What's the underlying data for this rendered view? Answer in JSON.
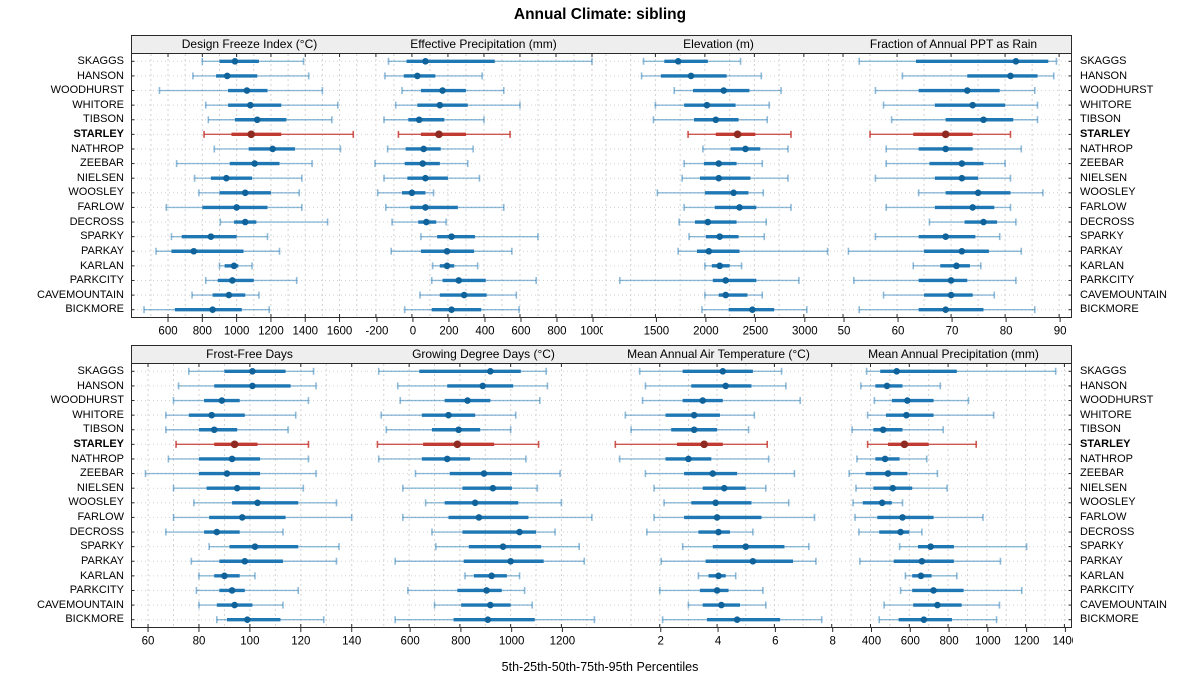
{
  "title": "Annual Climate: sibling",
  "caption": "5th-25th-50th-75th-95th Percentiles",
  "highlight_station": "STARLEY",
  "colors": {
    "normal_box": "#1f77b4",
    "normal_whisker": "rgba(31,119,180,0.5)",
    "normal_dot": "#0f639a",
    "highlight_box": "#c23b32",
    "highlight_whisker": "rgba(197,58,50,0.85)",
    "highlight_dot": "#8e2a22",
    "grid": "#d2d2d2",
    "border": "#2a2a2a",
    "header_bg": "#eeeeee"
  },
  "stations": [
    "SKAGGS",
    "HANSON",
    "WOODHURST",
    "WHITORE",
    "TIBSON",
    "STARLEY",
    "NATHROP",
    "ZEEBAR",
    "NIELSEN",
    "WOOSLEY",
    "FARLOW",
    "DECROSS",
    "SPARKY",
    "PARKAY",
    "KARLAN",
    "PARKCITY",
    "CAVEMOUNTAIN",
    "BICKMORE"
  ],
  "chart_data": {
    "type": "scatter",
    "variant": "percentile-range-dotplot-trellis",
    "percentiles": [
      5,
      25,
      50,
      75,
      95
    ],
    "legend_position": "none",
    "grid": true,
    "panels": [
      {
        "title": "Design Freeze Index (°C)",
        "xlim": [
          390,
          1760
        ],
        "ticks": [
          600,
          800,
          1000,
          1200,
          1400,
          1600
        ],
        "grid_step": 100,
        "values": [
          [
            800,
            900,
            990,
            1130,
            1390
          ],
          [
            745,
            880,
            945,
            1120,
            1420
          ],
          [
            550,
            950,
            1060,
            1180,
            1500
          ],
          [
            820,
            950,
            1080,
            1260,
            1590
          ],
          [
            835,
            990,
            1120,
            1290,
            1555
          ],
          [
            810,
            970,
            1085,
            1260,
            1680
          ],
          [
            870,
            1070,
            1210,
            1340,
            1605
          ],
          [
            650,
            960,
            1105,
            1250,
            1440
          ],
          [
            755,
            850,
            940,
            1090,
            1380
          ],
          [
            780,
            900,
            1050,
            1200,
            1365
          ],
          [
            590,
            800,
            1000,
            1180,
            1380
          ],
          [
            905,
            985,
            1050,
            1115,
            1530
          ],
          [
            620,
            680,
            850,
            1000,
            1180
          ],
          [
            530,
            620,
            750,
            1040,
            1250
          ],
          [
            900,
            930,
            985,
            1010,
            1090
          ],
          [
            820,
            890,
            975,
            1100,
            1350
          ],
          [
            740,
            860,
            955,
            1050,
            1130
          ],
          [
            460,
            640,
            860,
            1030,
            1190
          ]
        ]
      },
      {
        "title": "Effective Precipitation (mm)",
        "xlim": [
          -255,
          1050
        ],
        "ticks": [
          -200,
          0,
          200,
          400,
          600,
          800,
          1000
        ],
        "grid_step": 100,
        "values": [
          [
            -130,
            -30,
            75,
            460,
            1000
          ],
          [
            -150,
            -45,
            30,
            130,
            390
          ],
          [
            -55,
            50,
            170,
            300,
            510
          ],
          [
            -90,
            30,
            155,
            310,
            600
          ],
          [
            -155,
            -20,
            40,
            180,
            400
          ],
          [
            -75,
            50,
            150,
            300,
            545
          ],
          [
            -135,
            -35,
            65,
            160,
            340
          ],
          [
            -205,
            -40,
            60,
            155,
            310
          ],
          [
            -155,
            -25,
            75,
            200,
            375
          ],
          [
            -190,
            -55,
            0,
            75,
            120
          ],
          [
            -145,
            -10,
            75,
            255,
            510
          ],
          [
            -110,
            35,
            80,
            135,
            190
          ],
          [
            50,
            140,
            220,
            350,
            700
          ],
          [
            -115,
            50,
            195,
            345,
            555
          ],
          [
            115,
            155,
            195,
            235,
            365
          ],
          [
            110,
            170,
            260,
            410,
            690
          ],
          [
            45,
            155,
            290,
            415,
            580
          ],
          [
            -40,
            110,
            220,
            385,
            595
          ]
        ]
      },
      {
        "title": "Elevation (m)",
        "xlim": [
          950,
          3325
        ],
        "ticks": [
          1500,
          2000,
          2500,
          3000
        ],
        "grid_step": 250,
        "values": [
          [
            1380,
            1590,
            1730,
            2030,
            2360
          ],
          [
            1360,
            1555,
            1860,
            2220,
            2570
          ],
          [
            1690,
            1880,
            2190,
            2450,
            2770
          ],
          [
            1500,
            1790,
            2020,
            2310,
            2650
          ],
          [
            1480,
            1890,
            2110,
            2340,
            2630
          ],
          [
            1830,
            2110,
            2330,
            2510,
            2870
          ],
          [
            1980,
            2260,
            2410,
            2560,
            2840
          ],
          [
            1790,
            1990,
            2140,
            2320,
            2580
          ],
          [
            1770,
            1950,
            2140,
            2460,
            2840
          ],
          [
            1520,
            2000,
            2290,
            2440,
            2590
          ],
          [
            1790,
            2100,
            2350,
            2520,
            2870
          ],
          [
            1740,
            1900,
            2030,
            2320,
            2620
          ],
          [
            1840,
            2010,
            2150,
            2340,
            2600
          ],
          [
            1730,
            1920,
            2040,
            2350,
            3240
          ],
          [
            2000,
            2070,
            2150,
            2250,
            2370
          ],
          [
            1140,
            2080,
            2210,
            2520,
            2950
          ],
          [
            2000,
            2140,
            2210,
            2430,
            2580
          ],
          [
            1970,
            2240,
            2480,
            2700,
            3030
          ]
        ]
      },
      {
        "title": "Fraction of Annual PPT as Rain",
        "xlim": [
          48.7,
          92.2
        ],
        "ticks": [
          50,
          60,
          70,
          80,
          90
        ],
        "grid_step": 5,
        "values": [
          [
            53,
            63.5,
            82,
            88,
            89.5
          ],
          [
            61,
            73,
            81,
            86,
            89
          ],
          [
            56,
            64,
            73,
            79,
            85.5
          ],
          [
            57.5,
            67,
            74,
            80,
            86
          ],
          [
            59,
            69,
            76,
            81.5,
            86
          ],
          [
            55,
            63,
            69,
            74,
            81
          ],
          [
            58,
            64,
            69,
            74,
            83
          ],
          [
            58,
            66,
            72,
            76,
            80
          ],
          [
            56,
            67,
            72,
            75,
            81
          ],
          [
            64,
            69,
            75,
            81,
            87
          ],
          [
            58,
            67,
            74,
            78,
            81
          ],
          [
            66,
            72.5,
            76,
            78.5,
            82
          ],
          [
            56,
            64,
            69,
            74.5,
            79
          ],
          [
            51,
            65,
            72,
            77,
            83
          ],
          [
            63,
            68,
            71,
            73.5,
            75.5
          ],
          [
            52,
            64,
            70,
            73,
            82
          ],
          [
            57.5,
            65,
            70,
            74,
            78
          ],
          [
            53,
            64,
            69,
            76,
            85.5
          ]
        ]
      },
      {
        "title": "Frost-Free Days",
        "xlim": [
          53.7,
          146
        ],
        "ticks": [
          60,
          80,
          100,
          120,
          140
        ],
        "grid_step": 10,
        "values": [
          [
            76,
            90,
            101,
            114,
            125
          ],
          [
            72,
            86,
            101,
            116,
            126
          ],
          [
            70,
            82,
            89,
            96,
            123
          ],
          [
            67,
            76,
            85,
            98,
            118
          ],
          [
            67,
            80,
            86,
            95,
            115
          ],
          [
            71,
            86,
            94,
            103,
            123
          ],
          [
            68,
            80,
            93,
            104,
            123
          ],
          [
            59,
            80,
            91,
            104,
            126
          ],
          [
            70,
            83,
            95,
            104,
            121
          ],
          [
            78,
            93,
            103,
            119,
            134
          ],
          [
            70,
            84,
            97,
            114,
            140
          ],
          [
            67,
            82,
            87,
            96,
            113
          ],
          [
            84,
            92,
            102,
            119,
            135
          ],
          [
            77,
            88,
            98,
            113,
            134
          ],
          [
            80,
            86,
            90,
            96,
            102
          ],
          [
            79,
            88,
            93,
            98,
            119
          ],
          [
            80,
            87,
            94,
            101,
            113
          ],
          [
            87,
            91,
            99,
            112,
            129
          ]
        ]
      },
      {
        "title": "Growing Degree Days (°C)",
        "xlim": [
          430,
          1356
        ],
        "ticks": [
          600,
          800,
          1000,
          1200
        ],
        "grid_step": 100,
        "values": [
          [
            480,
            640,
            920,
            1040,
            1140
          ],
          [
            555,
            750,
            890,
            1010,
            1145
          ],
          [
            565,
            740,
            830,
            920,
            1115
          ],
          [
            490,
            650,
            755,
            860,
            1020
          ],
          [
            510,
            690,
            795,
            880,
            1000
          ],
          [
            475,
            655,
            790,
            935,
            1110
          ],
          [
            480,
            650,
            750,
            840,
            1060
          ],
          [
            625,
            760,
            895,
            1005,
            1195
          ],
          [
            575,
            810,
            930,
            1005,
            1105
          ],
          [
            665,
            740,
            860,
            1030,
            1200
          ],
          [
            575,
            755,
            875,
            1070,
            1320
          ],
          [
            690,
            810,
            1035,
            1100,
            1175
          ],
          [
            705,
            835,
            970,
            1120,
            1270
          ],
          [
            545,
            815,
            1000,
            1130,
            1290
          ],
          [
            820,
            855,
            925,
            985,
            1035
          ],
          [
            595,
            790,
            905,
            965,
            1055
          ],
          [
            700,
            805,
            920,
            1000,
            1085
          ],
          [
            545,
            775,
            910,
            1095,
            1330
          ]
        ]
      },
      {
        "title": "Mean Annual Air Temperature (°C)",
        "xlim": [
          -0.05,
          8.15
        ],
        "ticks": [
          2,
          4,
          6,
          8
        ],
        "grid_step": 1,
        "values": [
          [
            1.3,
            2.8,
            4.2,
            5.25,
            6.25
          ],
          [
            1.5,
            3.1,
            4.3,
            5.2,
            6.4
          ],
          [
            1.4,
            2.8,
            3.5,
            4.2,
            6.9
          ],
          [
            0.8,
            2.2,
            3.2,
            4.1,
            5.3
          ],
          [
            1.0,
            2.4,
            3.2,
            4.0,
            5.1
          ],
          [
            0.45,
            2.6,
            3.55,
            4.2,
            5.75
          ],
          [
            0.6,
            2.2,
            3.0,
            3.8,
            5.8
          ],
          [
            1.5,
            2.85,
            3.85,
            4.7,
            6.7
          ],
          [
            1.8,
            3.5,
            4.25,
            5.0,
            5.7
          ],
          [
            2.15,
            3.1,
            3.95,
            5.2,
            6.5
          ],
          [
            1.8,
            2.85,
            4.0,
            5.55,
            7.4
          ],
          [
            1.55,
            3.35,
            4.05,
            4.45,
            5.25
          ],
          [
            2.8,
            3.85,
            5.0,
            6.35,
            7.2
          ],
          [
            2.05,
            3.6,
            5.25,
            6.65,
            7.45
          ],
          [
            3.35,
            3.7,
            4.05,
            4.3,
            4.65
          ],
          [
            2.0,
            3.4,
            4.0,
            4.4,
            5.6
          ],
          [
            3.0,
            3.5,
            4.15,
            4.8,
            5.7
          ],
          [
            2.1,
            3.65,
            4.7,
            6.2,
            7.65
          ]
        ]
      },
      {
        "title": "Mean Annual Precipitation (mm)",
        "xlim": [
          222,
          1434
        ],
        "ticks": [
          400,
          600,
          800,
          1000,
          1200,
          1400
        ],
        "grid_step": 100,
        "values": [
          [
            380,
            450,
            535,
            845,
            1355
          ],
          [
            350,
            425,
            485,
            565,
            760
          ],
          [
            420,
            510,
            590,
            725,
            905
          ],
          [
            385,
            480,
            585,
            725,
            1035
          ],
          [
            305,
            415,
            465,
            565,
            775
          ],
          [
            385,
            490,
            575,
            700,
            945
          ],
          [
            330,
            425,
            475,
            550,
            690
          ],
          [
            290,
            375,
            490,
            590,
            745
          ],
          [
            325,
            415,
            515,
            615,
            795
          ],
          [
            310,
            360,
            460,
            510,
            565
          ],
          [
            320,
            435,
            565,
            725,
            980
          ],
          [
            340,
            445,
            555,
            600,
            665
          ],
          [
            550,
            645,
            710,
            830,
            1205
          ],
          [
            345,
            520,
            665,
            830,
            1070
          ],
          [
            580,
            615,
            660,
            715,
            845
          ],
          [
            555,
            615,
            725,
            880,
            1180
          ],
          [
            470,
            620,
            745,
            870,
            1065
          ],
          [
            445,
            545,
            675,
            820,
            1050
          ]
        ]
      }
    ]
  }
}
